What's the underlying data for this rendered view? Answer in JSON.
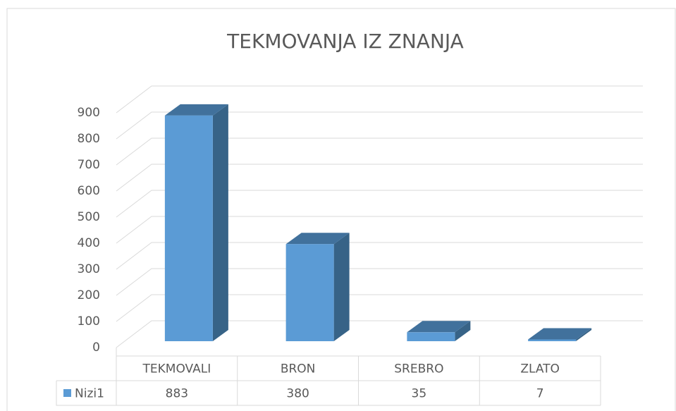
{
  "chart_data": {
    "type": "bar3d",
    "title": "TEKMOVANJA IZ ZNANJA",
    "categories": [
      "TEKMOVALI",
      "BRON",
      "SREBRO",
      "ZLATO"
    ],
    "series": [
      {
        "name": "Nizi1",
        "color": "#5b9bd5",
        "values": [
          883,
          380,
          35,
          7
        ]
      }
    ],
    "ylim": [
      0,
      900
    ],
    "yticks": [
      0,
      100,
      200,
      300,
      400,
      500,
      600,
      700,
      800,
      900
    ],
    "grid": true,
    "data_table": true
  }
}
